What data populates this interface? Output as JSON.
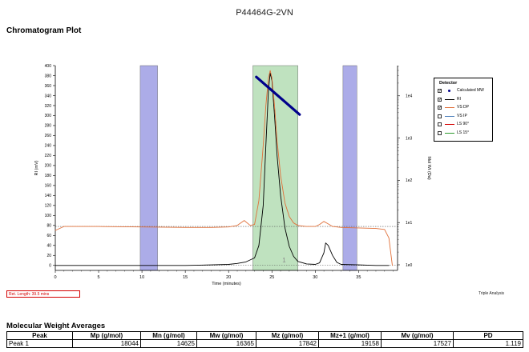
{
  "sample_title": "P44464G-2VN",
  "plot_heading": "Chromatogram Plot",
  "retention_text": "Ret. Length: 39.5 mins",
  "triple_label": "Triple Analysis",
  "mwa_heading": "Molecular Weight Averages",
  "table": {
    "headers": [
      "Peak",
      "Mp (g/mol)",
      "Mn (g/mol)",
      "Mw (g/mol)",
      "Mz (g/mol)",
      "Mz+1 (g/mol)",
      "Mv (g/mol)",
      "PD"
    ],
    "rows": [
      [
        "Peak 1",
        "18044",
        "14625",
        "16365",
        "17842",
        "19158",
        "17527",
        "1.119"
      ]
    ]
  },
  "legend": {
    "title": "Detector",
    "items": [
      {
        "label": "Calculated MW",
        "checked": true,
        "color": "#00008b",
        "marker": "dot"
      },
      {
        "label": "RI",
        "checked": true,
        "color": "#000000"
      },
      {
        "label": "VS DP",
        "checked": true,
        "color": "#e0703a"
      },
      {
        "label": "VS IP",
        "checked": false,
        "color": "#4f81bd"
      },
      {
        "label": "LS 90°",
        "checked": false,
        "color": "#d40000"
      },
      {
        "label": "LS 15°",
        "checked": false,
        "color": "#2e9a2e"
      }
    ]
  },
  "chart_data": {
    "type": "line",
    "xlabel": "Time (minutes)",
    "ylabel": "RI (mV)",
    "y2label": "Mol Wt (Da)",
    "xlim": [
      0,
      39.5
    ],
    "ylim": [
      -10,
      400
    ],
    "x_ticks": [
      0,
      5,
      10,
      15,
      20,
      25,
      30,
      35
    ],
    "y_ticks": [
      0,
      20,
      40,
      60,
      80,
      100,
      120,
      140,
      160,
      180,
      200,
      220,
      240,
      260,
      280,
      300,
      320,
      340,
      360,
      380,
      400
    ],
    "y2_log_range": [
      1,
      100000
    ],
    "y2_ticks": [
      1,
      10,
      100,
      1000,
      10000
    ],
    "y2_tick_labels": [
      "1e0",
      "1e1",
      "1e2",
      "1e3",
      "1e4"
    ],
    "regions": [
      {
        "x": [
          9.8,
          11.8
        ],
        "color": "#9090e0"
      },
      {
        "x": [
          22.8,
          28.0
        ],
        "color": "#a9d8a9"
      },
      {
        "x": [
          33.2,
          34.8
        ],
        "color": "#9090e0"
      }
    ],
    "peak_label": {
      "x": 26.2,
      "y": 6,
      "text": "1"
    },
    "series": [
      {
        "name": "RI",
        "color": "#000000",
        "x": [
          0,
          5,
          10,
          15,
          18,
          20,
          21,
          22,
          23,
          23.5,
          24,
          24.3,
          24.6,
          24.8,
          25.0,
          25.3,
          25.6,
          26,
          26.5,
          27,
          27.5,
          28,
          29,
          30,
          30.5,
          31,
          31.2,
          31.5,
          32,
          32.5,
          33,
          35,
          37,
          38.5
        ],
        "y": [
          0,
          0,
          0,
          0,
          1,
          2,
          4,
          7,
          15,
          40,
          120,
          240,
          350,
          385,
          370,
          300,
          220,
          140,
          75,
          38,
          18,
          8,
          3,
          2,
          5,
          25,
          45,
          40,
          20,
          6,
          2,
          1,
          0,
          0
        ]
      },
      {
        "name": "VS DP",
        "color": "#e0703a",
        "x": [
          0,
          1,
          5,
          10,
          15,
          18,
          20,
          21,
          21.8,
          22.5,
          23,
          23.5,
          24,
          24.3,
          24.6,
          24.8,
          25.0,
          25.3,
          25.6,
          26,
          26.5,
          27,
          27.5,
          28,
          29,
          30,
          30.5,
          31,
          31.5,
          32,
          33,
          35,
          37,
          38,
          38.5,
          38.9
        ],
        "y": [
          70,
          78,
          78,
          77,
          76,
          76,
          77,
          80,
          90,
          80,
          82,
          130,
          240,
          320,
          375,
          390,
          375,
          320,
          250,
          180,
          125,
          98,
          85,
          80,
          78,
          78,
          82,
          88,
          83,
          78,
          76,
          75,
          74,
          72,
          55,
          0
        ]
      },
      {
        "name": "Calculated MW",
        "color": "#00008b",
        "axis": "y2",
        "x": [
          23.2,
          28.2
        ],
        "y": [
          28000,
          3600
        ]
      }
    ]
  }
}
